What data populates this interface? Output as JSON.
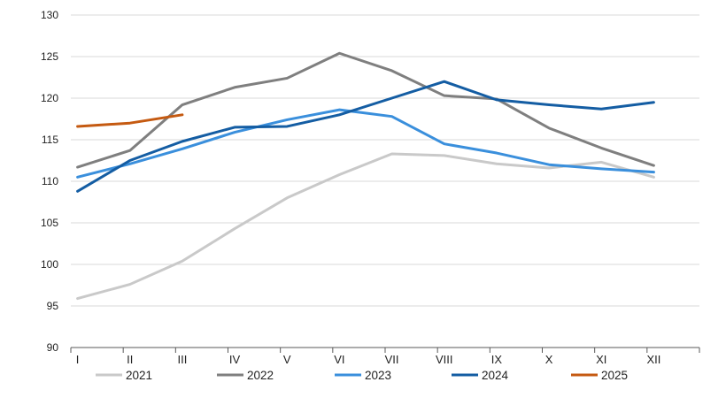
{
  "chart_data": {
    "type": "line",
    "title": "",
    "xlabel": "",
    "ylabel": "",
    "categories": [
      "I",
      "II",
      "III",
      "IV",
      "V",
      "VI",
      "VII",
      "VIII",
      "IX",
      "X",
      "XI",
      "XII"
    ],
    "ylim": [
      90,
      130
    ],
    "yticks": [
      90,
      95,
      100,
      105,
      110,
      115,
      120,
      125,
      130
    ],
    "grid": "horizontal",
    "legend_position": "bottom",
    "series": [
      {
        "name": "2021",
        "color": "#c9c9c9",
        "values": [
          95.9,
          97.6,
          100.4,
          104.3,
          108.0,
          110.8,
          113.3,
          113.1,
          112.1,
          111.6,
          112.3,
          110.5
        ]
      },
      {
        "name": "2022",
        "color": "#7f7f7f",
        "values": [
          111.7,
          113.7,
          119.2,
          121.3,
          122.4,
          125.4,
          123.3,
          120.3,
          119.9,
          116.4,
          114.0,
          111.9
        ]
      },
      {
        "name": "2023",
        "color": "#3a8fdc",
        "values": [
          110.5,
          112.1,
          113.9,
          115.9,
          117.4,
          118.6,
          117.8,
          114.5,
          113.4,
          112.0,
          111.5,
          111.1
        ]
      },
      {
        "name": "2024",
        "color": "#145da3",
        "values": [
          108.8,
          112.5,
          114.8,
          116.5,
          116.6,
          118.0,
          120.0,
          122.0,
          119.8,
          119.2,
          118.7,
          119.5
        ]
      },
      {
        "name": "2025",
        "color": "#c55a11",
        "values": [
          116.6,
          117.0,
          118.0,
          null,
          null,
          null,
          null,
          null,
          null,
          null,
          null,
          null
        ]
      }
    ]
  }
}
